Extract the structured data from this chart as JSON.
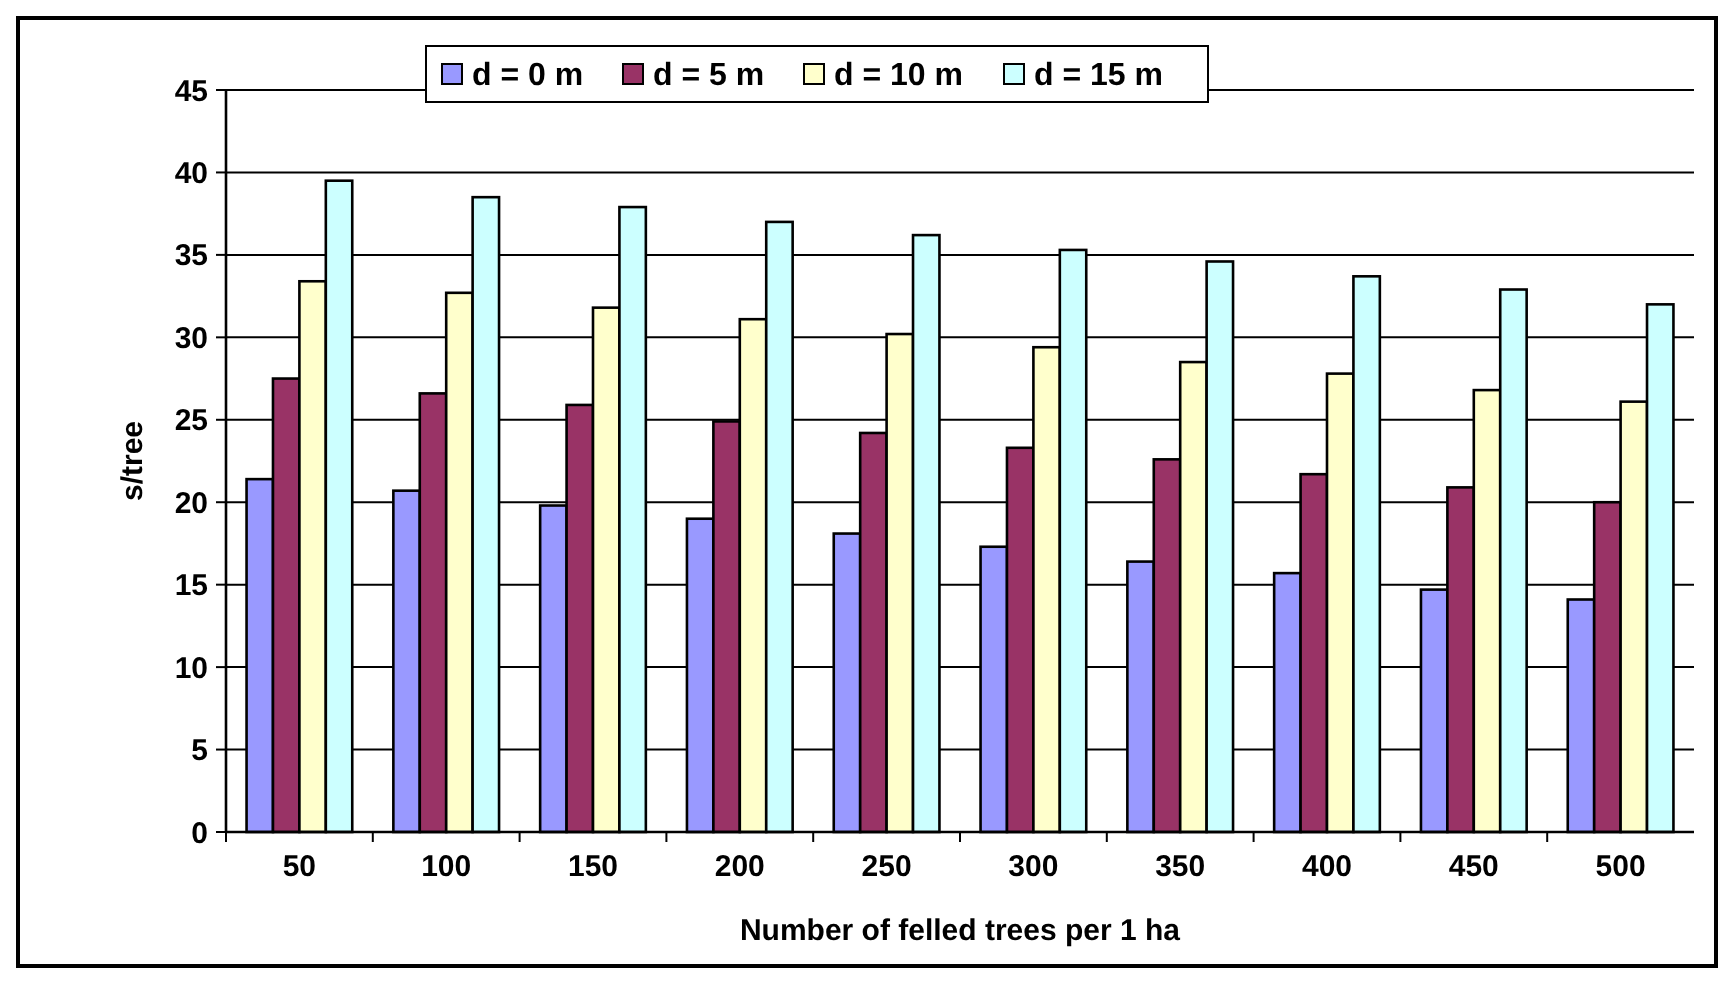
{
  "chart_data": {
    "type": "bar",
    "xlabel": "Number of felled trees per 1 ha",
    "ylabel": "s/tree",
    "categories": [
      "50",
      "100",
      "150",
      "200",
      "250",
      "300",
      "350",
      "400",
      "450",
      "500"
    ],
    "series": [
      {
        "name": "d = 0 m",
        "color": "#9999ff",
        "values": [
          21.4,
          20.7,
          19.8,
          19.0,
          18.1,
          17.3,
          16.4,
          15.7,
          14.7,
          14.1
        ]
      },
      {
        "name": "d = 5 m",
        "color": "#993366",
        "values": [
          27.5,
          26.6,
          25.9,
          24.9,
          24.2,
          23.3,
          22.6,
          21.7,
          20.9,
          20.0
        ]
      },
      {
        "name": "d = 10 m",
        "color": "#ffffcc",
        "values": [
          33.4,
          32.7,
          31.8,
          31.1,
          30.2,
          29.4,
          28.5,
          27.8,
          26.8,
          26.1
        ]
      },
      {
        "name": "d = 15 m",
        "color": "#ccffff",
        "values": [
          39.5,
          38.5,
          37.9,
          37.0,
          36.2,
          35.3,
          34.6,
          33.7,
          32.9,
          32.0
        ]
      }
    ],
    "ylim": [
      0,
      45
    ],
    "yticks": [
      0,
      5,
      10,
      15,
      20,
      25,
      30,
      35,
      40,
      45
    ],
    "grid": "y",
    "legend": "top"
  }
}
